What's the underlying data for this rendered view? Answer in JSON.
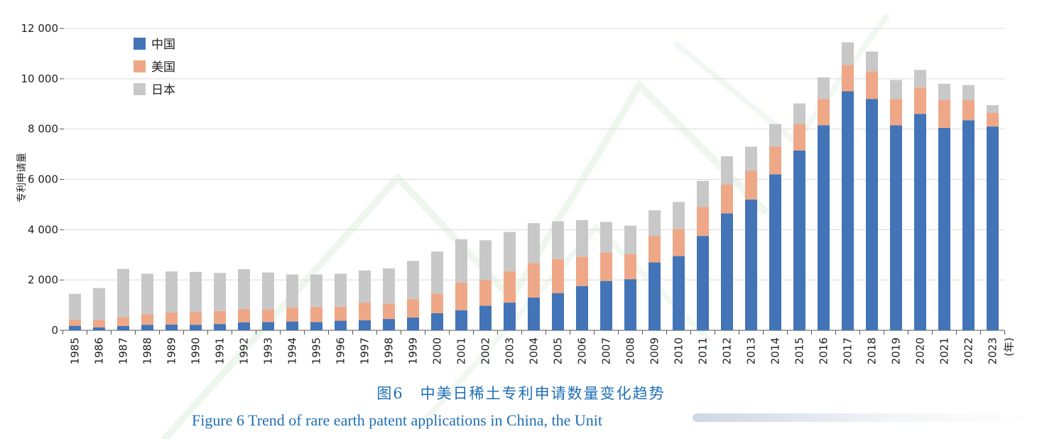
{
  "chart_data": {
    "type": "bar",
    "stacked": true,
    "categories": [
      "1985",
      "1986",
      "1987",
      "1988",
      "1989",
      "1990",
      "1991",
      "1992",
      "1993",
      "1994",
      "1995",
      "1996",
      "1997",
      "1998",
      "1999",
      "2000",
      "2001",
      "2002",
      "2003",
      "2004",
      "2005",
      "2006",
      "2007",
      "2008",
      "2009",
      "2010",
      "2011",
      "2012",
      "2013",
      "2014",
      "2015",
      "2016",
      "2017",
      "2018",
      "2019",
      "2020",
      "2021",
      "2022",
      "2023"
    ],
    "x_unit_label": "(年)",
    "ylabel": "专利申请量",
    "ylim": [
      0,
      12000
    ],
    "yticks": [
      0,
      2000,
      4000,
      6000,
      8000,
      10000,
      12000
    ],
    "ytick_labels": [
      "0",
      "2 000",
      "4 000",
      "6 000",
      "8 000",
      "10 000",
      "12 000"
    ],
    "grid": true,
    "legend_position": "top-left",
    "series": [
      {
        "name": "中国",
        "color": "#4274b7",
        "values": [
          180,
          120,
          170,
          220,
          230,
          220,
          250,
          320,
          330,
          350,
          330,
          380,
          400,
          450,
          510,
          680,
          800,
          980,
          1100,
          1300,
          1480,
          1760,
          1960,
          2030,
          2700,
          2950,
          3750,
          4650,
          5200,
          6200,
          7150,
          8150,
          9500,
          9200,
          8150,
          8600,
          8050,
          8350,
          8100
        ]
      },
      {
        "name": "美国",
        "color": "#eea887",
        "values": [
          250,
          300,
          350,
          420,
          480,
          500,
          520,
          530,
          500,
          560,
          600,
          560,
          700,
          620,
          740,
          780,
          1100,
          1020,
          1250,
          1370,
          1350,
          1170,
          1130,
          1000,
          1050,
          1080,
          1150,
          1150,
          1150,
          1100,
          1050,
          1050,
          1050,
          1100,
          1050,
          1050,
          1100,
          800,
          550
        ]
      },
      {
        "name": "日本",
        "color": "#c8c8c8",
        "values": [
          1020,
          1260,
          1920,
          1610,
          1630,
          1600,
          1510,
          1580,
          1470,
          1310,
          1290,
          1310,
          1280,
          1390,
          1510,
          1670,
          1720,
          1580,
          1560,
          1590,
          1500,
          1450,
          1220,
          1130,
          1020,
          1070,
          1040,
          1120,
          950,
          900,
          820,
          850,
          900,
          780,
          750,
          700,
          650,
          600,
          300
        ]
      }
    ]
  },
  "caption": {
    "cn": "图6　中美日稀土专利申请数量变化趋势",
    "en": "Figure 6    Trend of rare earth patent applications in China, the Unit"
  }
}
